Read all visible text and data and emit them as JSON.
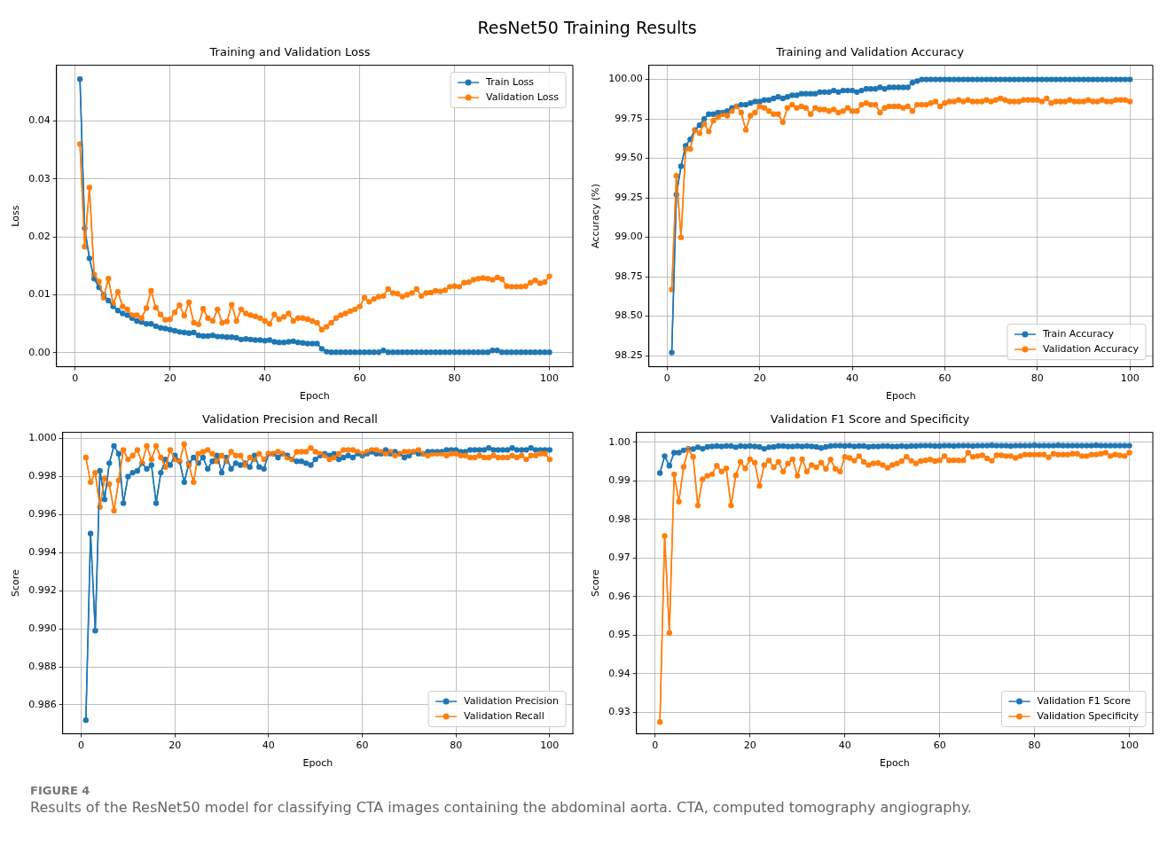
{
  "chart_data": [
    {
      "type": "other",
      "title": "ResNet50 Training Results"
    },
    {
      "type": "line",
      "title": "Training and Validation Loss",
      "xlabel": "Epoch",
      "ylabel": "Loss",
      "marker": "circle",
      "line_style": "solid",
      "grid": true,
      "legend": "top right",
      "xlim": [
        -3.95,
        104.95
      ],
      "xticks": [
        0,
        20,
        40,
        60,
        80,
        100
      ],
      "ylim": [
        -0.0024,
        0.0496
      ],
      "yticks": [
        {
          "value": 0,
          "label": "0.00"
        },
        0.01,
        0.02,
        0.03,
        0.04
      ],
      "x": [
        1,
        2,
        3,
        4,
        5,
        6,
        7,
        8,
        9,
        10,
        11,
        12,
        13,
        14,
        15,
        16,
        17,
        18,
        19,
        20,
        21,
        22,
        23,
        24,
        25,
        26,
        27,
        28,
        29,
        30,
        31,
        32,
        33,
        34,
        35,
        36,
        37,
        38,
        39,
        40,
        41,
        42,
        43,
        44,
        45,
        46,
        47,
        48,
        49,
        50,
        51,
        52,
        53,
        54,
        55,
        56,
        57,
        58,
        59,
        60,
        61,
        62,
        63,
        64,
        65,
        66,
        67,
        68,
        69,
        70,
        71,
        72,
        73,
        74,
        75,
        76,
        77,
        78,
        79,
        80,
        81,
        82,
        83,
        84,
        85,
        86,
        87,
        88,
        89,
        90,
        91,
        92,
        93,
        94,
        95,
        96,
        97,
        98,
        99,
        100
      ],
      "series": [
        {
          "name": "Train Loss",
          "color": "#1f77b4",
          "values": [
            0.0472,
            0.0215,
            0.0163,
            0.0128,
            0.0113,
            0.01,
            0.009,
            0.008,
            0.0073,
            0.0068,
            0.0065,
            0.006,
            0.0055,
            0.0053,
            0.005,
            0.005,
            0.0046,
            0.0043,
            0.0042,
            0.004,
            0.0038,
            0.0036,
            0.0035,
            0.0034,
            0.0035,
            0.003,
            0.0029,
            0.0029,
            0.003,
            0.0028,
            0.0028,
            0.0027,
            0.0027,
            0.0026,
            0.0023,
            0.0024,
            0.0023,
            0.0022,
            0.0022,
            0.0021,
            0.0022,
            0.0019,
            0.0018,
            0.0018,
            0.0019,
            0.002,
            0.0018,
            0.0017,
            0.0016,
            0.0016,
            0.0016,
            0.0007,
            0.0002,
            0.0001,
            0.0001,
            0.0001,
            0.0001,
            0.0001,
            0.0001,
            0.0001,
            0.0001,
            0.0001,
            0.0001,
            0.0001,
            0.0004,
            0.0001,
            0.0001,
            0.0001,
            0.0001,
            0.0001,
            0.0001,
            0.0001,
            0.0001,
            0.0001,
            0.0001,
            0.0001,
            0.0001,
            0.0001,
            0.0001,
            0.0001,
            0.0001,
            0.0001,
            0.0001,
            0.0001,
            0.0001,
            0.0001,
            0.0001,
            0.0004,
            0.0004,
            0.0001,
            0.0001,
            0.0001,
            0.0001,
            0.0001,
            0.0001,
            0.0001,
            0.0001,
            0.0001,
            0.0001,
            0.0001
          ]
        },
        {
          "name": "Validation Loss",
          "color": "#ff7f0e",
          "values": [
            0.036,
            0.0183,
            0.0285,
            0.0135,
            0.0123,
            0.0095,
            0.0128,
            0.0085,
            0.0105,
            0.008,
            0.0075,
            0.0065,
            0.0065,
            0.006,
            0.0077,
            0.0107,
            0.0078,
            0.0066,
            0.0057,
            0.0058,
            0.007,
            0.0082,
            0.0064,
            0.0087,
            0.0052,
            0.0049,
            0.0076,
            0.006,
            0.0055,
            0.0075,
            0.0052,
            0.0054,
            0.0083,
            0.0055,
            0.0075,
            0.0068,
            0.0065,
            0.0063,
            0.006,
            0.0055,
            0.005,
            0.0066,
            0.0058,
            0.0062,
            0.0068,
            0.0055,
            0.006,
            0.006,
            0.0058,
            0.0055,
            0.0052,
            0.004,
            0.0045,
            0.0052,
            0.006,
            0.0065,
            0.0068,
            0.0072,
            0.0075,
            0.008,
            0.0095,
            0.0088,
            0.0093,
            0.0097,
            0.0098,
            0.011,
            0.0103,
            0.0102,
            0.0097,
            0.01,
            0.0103,
            0.011,
            0.0098,
            0.0103,
            0.0104,
            0.0107,
            0.0106,
            0.0108,
            0.0114,
            0.0115,
            0.0114,
            0.0121,
            0.0122,
            0.0126,
            0.0128,
            0.0129,
            0.0128,
            0.0126,
            0.013,
            0.0127,
            0.0115,
            0.0114,
            0.0114,
            0.0114,
            0.0115,
            0.0121,
            0.0125,
            0.012,
            0.0122,
            0.0132
          ]
        }
      ]
    },
    {
      "type": "line",
      "title": "Training and Validation Accuracy",
      "xlabel": "Epoch",
      "ylabel": "Accuracy (%)",
      "marker": "circle",
      "line_style": "solid",
      "grid": true,
      "legend": "bottom right",
      "xlim": [
        -3.95,
        104.95
      ],
      "xticks": [
        0,
        20,
        40,
        60,
        80,
        100
      ],
      "ylim": [
        98.18,
        100.09
      ],
      "yticks": [
        98.25,
        {
          "value": 98.5,
          "label": "98.50"
        },
        98.75,
        {
          "value": 99,
          "label": "99.00"
        },
        99.25,
        {
          "value": 99.5,
          "label": "99.50"
        },
        99.75,
        {
          "value": 100,
          "label": "100.00"
        }
      ],
      "x": [
        1,
        2,
        3,
        4,
        5,
        6,
        7,
        8,
        9,
        10,
        11,
        12,
        13,
        14,
        15,
        16,
        17,
        18,
        19,
        20,
        21,
        22,
        23,
        24,
        25,
        26,
        27,
        28,
        29,
        30,
        31,
        32,
        33,
        34,
        35,
        36,
        37,
        38,
        39,
        40,
        41,
        42,
        43,
        44,
        45,
        46,
        47,
        48,
        49,
        50,
        51,
        52,
        53,
        54,
        55,
        56,
        57,
        58,
        59,
        60,
        61,
        62,
        63,
        64,
        65,
        66,
        67,
        68,
        69,
        70,
        71,
        72,
        73,
        74,
        75,
        76,
        77,
        78,
        79,
        80,
        81,
        82,
        83,
        84,
        85,
        86,
        87,
        88,
        89,
        90,
        91,
        92,
        93,
        94,
        95,
        96,
        97,
        98,
        99,
        100
      ],
      "series": [
        {
          "name": "Train Accuracy",
          "color": "#1f77b4",
          "values": [
            98.27,
            99.27,
            99.45,
            99.58,
            99.62,
            99.68,
            99.71,
            99.75,
            99.78,
            99.78,
            99.79,
            99.79,
            99.8,
            99.82,
            99.83,
            99.84,
            99.84,
            99.85,
            99.86,
            99.86,
            99.87,
            99.87,
            99.88,
            99.89,
            99.88,
            99.89,
            99.9,
            99.9,
            99.91,
            99.91,
            99.91,
            99.91,
            99.92,
            99.92,
            99.92,
            99.93,
            99.92,
            99.93,
            99.93,
            99.93,
            99.92,
            99.93,
            99.94,
            99.94,
            99.94,
            99.95,
            99.94,
            99.95,
            99.95,
            99.95,
            99.95,
            99.95,
            99.98,
            99.99,
            100.0,
            100.0,
            100.0,
            100.0,
            100.0,
            100.0,
            100.0,
            100.0,
            100.0,
            100.0,
            100.0,
            100.0,
            100.0,
            100.0,
            100.0,
            100.0,
            100.0,
            100.0,
            100.0,
            100.0,
            100.0,
            100.0,
            100.0,
            100.0,
            100.0,
            100.0,
            100.0,
            100.0,
            100.0,
            100.0,
            100.0,
            100.0,
            100.0,
            100.0,
            100.0,
            100.0,
            100.0,
            100.0,
            100.0,
            100.0,
            100.0,
            100.0,
            100.0,
            100.0,
            100.0,
            100.0
          ]
        },
        {
          "name": "Validation Accuracy",
          "color": "#ff7f0e",
          "values": [
            98.67,
            99.39,
            99.0,
            99.56,
            99.56,
            99.68,
            99.66,
            99.72,
            99.67,
            99.74,
            99.76,
            99.78,
            99.77,
            99.8,
            99.83,
            99.79,
            99.68,
            99.77,
            99.79,
            99.83,
            99.82,
            99.8,
            99.78,
            99.78,
            99.73,
            99.82,
            99.84,
            99.82,
            99.83,
            99.82,
            99.78,
            99.82,
            99.81,
            99.81,
            99.8,
            99.81,
            99.79,
            99.8,
            99.82,
            99.8,
            99.8,
            99.84,
            99.85,
            99.84,
            99.84,
            99.79,
            99.82,
            99.83,
            99.83,
            99.83,
            99.82,
            99.83,
            99.8,
            99.84,
            99.84,
            99.84,
            99.85,
            99.86,
            99.83,
            99.85,
            99.86,
            99.86,
            99.87,
            99.86,
            99.87,
            99.86,
            99.86,
            99.86,
            99.87,
            99.86,
            99.87,
            99.88,
            99.87,
            99.86,
            99.86,
            99.86,
            99.87,
            99.87,
            99.87,
            99.87,
            99.86,
            99.88,
            99.85,
            99.86,
            99.86,
            99.86,
            99.87,
            99.86,
            99.86,
            99.86,
            99.87,
            99.86,
            99.86,
            99.87,
            99.86,
            99.86,
            99.87,
            99.87,
            99.87,
            99.86
          ]
        }
      ]
    },
    {
      "type": "line",
      "title": "Validation Precision and Recall",
      "xlabel": "Epoch",
      "ylabel": "Score",
      "marker": "circle",
      "line_style": "solid",
      "grid": true,
      "legend": "bottom right",
      "xlim": [
        -3.95,
        104.95
      ],
      "xticks": [
        0,
        20,
        40,
        60,
        80,
        100
      ],
      "ylim": [
        0.98448,
        1.00032
      ],
      "yticks": [
        0.986,
        0.988,
        {
          "value": 0.99,
          "label": "0.990"
        },
        0.992,
        0.994,
        0.996,
        0.998,
        {
          "value": 1,
          "label": "1.000"
        }
      ],
      "x": [
        1,
        2,
        3,
        4,
        5,
        6,
        7,
        8,
        9,
        10,
        11,
        12,
        13,
        14,
        15,
        16,
        17,
        18,
        19,
        20,
        21,
        22,
        23,
        24,
        25,
        26,
        27,
        28,
        29,
        30,
        31,
        32,
        33,
        34,
        35,
        36,
        37,
        38,
        39,
        40,
        41,
        42,
        43,
        44,
        45,
        46,
        47,
        48,
        49,
        50,
        51,
        52,
        53,
        54,
        55,
        56,
        57,
        58,
        59,
        60,
        61,
        62,
        63,
        64,
        65,
        66,
        67,
        68,
        69,
        70,
        71,
        72,
        73,
        74,
        75,
        76,
        77,
        78,
        79,
        80,
        81,
        82,
        83,
        84,
        85,
        86,
        87,
        88,
        89,
        90,
        91,
        92,
        93,
        94,
        95,
        96,
        97,
        98,
        99,
        100
      ],
      "series": [
        {
          "name": "Validation Precision",
          "color": "#1f77b4",
          "values": [
            0.9852,
            0.995,
            0.9899,
            0.9983,
            0.9968,
            0.9987,
            0.9996,
            0.9992,
            0.9966,
            0.998,
            0.9982,
            0.9983,
            0.9987,
            0.9984,
            0.9986,
            0.9966,
            0.9982,
            0.9989,
            0.9986,
            0.9991,
            0.9988,
            0.9977,
            0.9987,
            0.999,
            0.9987,
            0.999,
            0.9984,
            0.9988,
            0.9991,
            0.9982,
            0.999,
            0.9984,
            0.9987,
            0.9986,
            0.9987,
            0.9985,
            0.9991,
            0.9985,
            0.9984,
            0.9992,
            0.9992,
            0.999,
            0.9992,
            0.9991,
            0.9989,
            0.9988,
            0.9988,
            0.9987,
            0.9986,
            0.9989,
            0.9991,
            0.9992,
            0.9991,
            0.9992,
            0.9989,
            0.999,
            0.9991,
            0.999,
            0.9992,
            0.9991,
            0.9992,
            0.9993,
            0.9992,
            0.9992,
            0.9994,
            0.9992,
            0.9993,
            0.9992,
            0.999,
            0.9991,
            0.9993,
            0.9992,
            0.9992,
            0.9993,
            0.9993,
            0.9993,
            0.9993,
            0.9994,
            0.9994,
            0.9994,
            0.9993,
            0.9993,
            0.9994,
            0.9994,
            0.9994,
            0.9994,
            0.9995,
            0.9994,
            0.9994,
            0.9994,
            0.9994,
            0.9995,
            0.9994,
            0.9994,
            0.9994,
            0.9995,
            0.9994,
            0.9994,
            0.9994,
            0.9994
          ]
        },
        {
          "name": "Validation Recall",
          "color": "#ff7f0e",
          "values": [
            0.999,
            0.9977,
            0.9982,
            0.9964,
            0.9979,
            0.9976,
            0.9962,
            0.9978,
            0.9994,
            0.9989,
            0.9991,
            0.9994,
            0.9987,
            0.9996,
            0.9989,
            0.9996,
            0.999,
            0.9985,
            0.9994,
            0.9989,
            0.9988,
            0.9997,
            0.9986,
            0.9977,
            0.9992,
            0.9993,
            0.9994,
            0.9992,
            0.9988,
            0.9991,
            0.9988,
            0.9993,
            0.9991,
            0.9991,
            0.9986,
            0.999,
            0.9989,
            0.9992,
            0.9989,
            0.9992,
            0.9992,
            0.9993,
            0.9992,
            0.999,
            0.9989,
            0.9993,
            0.9993,
            0.9993,
            0.9995,
            0.9993,
            0.9992,
            0.9991,
            0.9989,
            0.999,
            0.9992,
            0.9994,
            0.9994,
            0.9994,
            0.9993,
            0.9992,
            0.9993,
            0.9994,
            0.9994,
            0.9993,
            0.9992,
            0.9993,
            0.9991,
            0.9992,
            0.9993,
            0.9993,
            0.9993,
            0.9994,
            0.9992,
            0.9991,
            0.9992,
            0.9992,
            0.9992,
            0.9991,
            0.9992,
            0.9992,
            0.9991,
            0.9991,
            0.999,
            0.999,
            0.9991,
            0.999,
            0.999,
            0.9991,
            0.999,
            0.999,
            0.999,
            0.9991,
            0.999,
            0.9991,
            0.9989,
            0.9991,
            0.9991,
            0.9992,
            0.9992,
            0.9989
          ]
        }
      ]
    },
    {
      "type": "line",
      "title": "Validation F1 Score and Specificity",
      "xlabel": "Epoch",
      "ylabel": "Score",
      "marker": "circle",
      "line_style": "solid",
      "grid": true,
      "legend": "bottom right",
      "xlim": [
        -3.95,
        104.95
      ],
      "xticks": [
        0,
        20,
        40,
        60,
        80,
        100
      ],
      "ylim": [
        0.92445,
        1.00255
      ],
      "yticks": [
        0.93,
        0.94,
        0.95,
        0.96,
        0.97,
        0.98,
        0.99,
        {
          "value": 1,
          "label": "1.00"
        }
      ],
      "x": [
        1,
        2,
        3,
        4,
        5,
        6,
        7,
        8,
        9,
        10,
        11,
        12,
        13,
        14,
        15,
        16,
        17,
        18,
        19,
        20,
        21,
        22,
        23,
        24,
        25,
        26,
        27,
        28,
        29,
        30,
        31,
        32,
        33,
        34,
        35,
        36,
        37,
        38,
        39,
        40,
        41,
        42,
        43,
        44,
        45,
        46,
        47,
        48,
        49,
        50,
        51,
        52,
        53,
        54,
        55,
        56,
        57,
        58,
        59,
        60,
        61,
        62,
        63,
        64,
        65,
        66,
        67,
        68,
        69,
        70,
        71,
        72,
        73,
        74,
        75,
        76,
        77,
        78,
        79,
        80,
        81,
        82,
        83,
        84,
        85,
        86,
        87,
        88,
        89,
        90,
        91,
        92,
        93,
        94,
        95,
        96,
        97,
        98,
        99,
        100
      ],
      "series": [
        {
          "name": "Validation F1 Score",
          "color": "#1f77b4",
          "values": [
            0.992,
            0.9964,
            0.9939,
            0.9973,
            0.9973,
            0.9979,
            0.9983,
            0.9982,
            0.9987,
            0.9983,
            0.9988,
            0.9989,
            0.999,
            0.9989,
            0.999,
            0.999,
            0.9987,
            0.999,
            0.9989,
            0.999,
            0.9989,
            0.9988,
            0.9983,
            0.9987,
            0.9988,
            0.999,
            0.999,
            0.9989,
            0.9989,
            0.999,
            0.9989,
            0.999,
            0.9989,
            0.9988,
            0.9985,
            0.9988,
            0.999,
            0.9991,
            0.9991,
            0.999,
            0.9991,
            0.9989,
            0.999,
            0.999,
            0.9988,
            0.9989,
            0.9989,
            0.999,
            0.999,
            0.9989,
            0.9989,
            0.999,
            0.9989,
            0.999,
            0.999,
            0.9991,
            0.9991,
            0.9991,
            0.999,
            0.999,
            0.9991,
            0.9991,
            0.999,
            0.9991,
            0.9991,
            0.9991,
            0.999,
            0.9991,
            0.9991,
            0.9991,
            0.9992,
            0.9991,
            0.9991,
            0.9991,
            0.999,
            0.9991,
            0.9991,
            0.9991,
            0.9991,
            0.9992,
            0.9991,
            0.9991,
            0.9991,
            0.9991,
            0.9992,
            0.9991,
            0.9991,
            0.9991,
            0.9991,
            0.9991,
            0.9991,
            0.9991,
            0.9992,
            0.9991,
            0.9991,
            0.9991,
            0.9991,
            0.9991,
            0.9991,
            0.9991
          ]
        },
        {
          "name": "Validation Specificity",
          "color": "#ff7f0e",
          "values": [
            0.9275,
            0.9757,
            0.9506,
            0.9917,
            0.9846,
            0.9936,
            0.9981,
            0.9962,
            0.9836,
            0.9904,
            0.9913,
            0.9917,
            0.9939,
            0.9924,
            0.9932,
            0.9836,
            0.9914,
            0.9949,
            0.9932,
            0.9956,
            0.9947,
            0.9887,
            0.9941,
            0.9953,
            0.9935,
            0.9949,
            0.9924,
            0.9945,
            0.9956,
            0.9913,
            0.9956,
            0.9924,
            0.9941,
            0.9935,
            0.9947,
            0.9931,
            0.9955,
            0.9931,
            0.9924,
            0.9962,
            0.9959,
            0.9952,
            0.9964,
            0.9949,
            0.9941,
            0.9945,
            0.9946,
            0.9941,
            0.9934,
            0.9941,
            0.9945,
            0.9951,
            0.9962,
            0.9952,
            0.9945,
            0.9951,
            0.9953,
            0.9955,
            0.9951,
            0.9953,
            0.9964,
            0.9953,
            0.9953,
            0.9953,
            0.9953,
            0.9973,
            0.9962,
            0.9964,
            0.9966,
            0.9958,
            0.9952,
            0.9966,
            0.9966,
            0.9964,
            0.9964,
            0.9959,
            0.9964,
            0.9968,
            0.9968,
            0.9968,
            0.9968,
            0.9968,
            0.9961,
            0.997,
            0.9968,
            0.9968,
            0.9968,
            0.997,
            0.997,
            0.9964,
            0.9964,
            0.9968,
            0.9968,
            0.997,
            0.9973,
            0.9964,
            0.9968,
            0.9966,
            0.9964,
            0.9973
          ]
        }
      ]
    },
    {
      "type": "other",
      "title": "FIGURE 4",
      "annotations": [
        "Results of the ResNet50 model for classifying CTA images containing the abdominal aorta. CTA, computed tomography angiography."
      ]
    }
  ]
}
